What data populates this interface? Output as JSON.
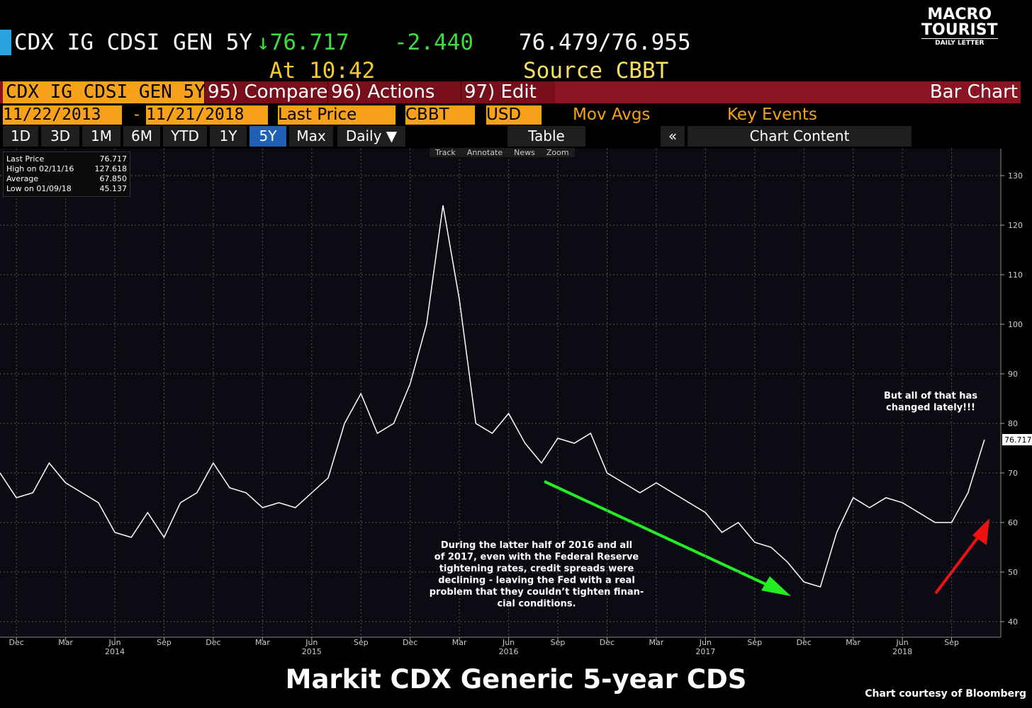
{
  "header": {
    "ticker": "CDX IG CDSI GEN 5Y",
    "last": "↓76.717",
    "change": "-2.440",
    "bid_ask": "76.479/76.955",
    "time": "At 10:42",
    "source": "Source CBBT",
    "logo_top": "MACRO",
    "logo_mid": "TOURIST",
    "logo_bottom": "DAILY LETTER"
  },
  "toolbar": {
    "security": "CDX IG CDSI GEN 5Y",
    "menu": [
      "95) Compare",
      "96) Actions",
      "97) Edit"
    ],
    "view": "Bar Chart",
    "start_date": "11/22/2013",
    "dash": "-",
    "end_date": "11/21/2018",
    "field": "Last Price",
    "source": "CBBT",
    "currency": "USD",
    "mov_avgs": "Mov Avgs",
    "key_events": "Key Events",
    "periods": [
      "1D",
      "3D",
      "1M",
      "6M",
      "YTD",
      "1Y",
      "5Y",
      "Max"
    ],
    "frequency": "Daily ▼",
    "table": "Table",
    "back": "«",
    "chart_content": "Chart Content",
    "tools": [
      "Track",
      "Annotate",
      "News",
      "Zoom"
    ]
  },
  "chart_data": {
    "type": "line",
    "color": "#ffffff",
    "legend_box": [
      {
        "name": "Last Price",
        "value": "76.717"
      },
      {
        "name": "High on 02/11/16",
        "value": "127.618"
      },
      {
        "name": "Average",
        "value": "67.850"
      },
      {
        "name": "Low on 01/09/18",
        "value": "45.137"
      }
    ],
    "x": [
      "2013-11",
      "2013-12",
      "2014-01",
      "2014-02",
      "2014-03",
      "2014-04",
      "2014-05",
      "2014-06",
      "2014-07",
      "2014-08",
      "2014-09",
      "2014-10",
      "2014-11",
      "2014-12",
      "2015-01",
      "2015-02",
      "2015-03",
      "2015-04",
      "2015-05",
      "2015-06",
      "2015-07",
      "2015-08",
      "2015-09",
      "2015-10",
      "2015-11",
      "2015-12",
      "2016-01",
      "2016-02",
      "2016-03",
      "2016-04",
      "2016-05",
      "2016-06",
      "2016-07",
      "2016-08",
      "2016-09",
      "2016-10",
      "2016-11",
      "2016-12",
      "2017-01",
      "2017-02",
      "2017-03",
      "2017-04",
      "2017-05",
      "2017-06",
      "2017-07",
      "2017-08",
      "2017-09",
      "2017-10",
      "2017-11",
      "2017-12",
      "2018-01",
      "2018-02",
      "2018-03",
      "2018-04",
      "2018-05",
      "2018-06",
      "2018-07",
      "2018-08",
      "2018-09",
      "2018-10",
      "2018-11"
    ],
    "values": [
      70,
      65,
      66,
      72,
      68,
      66,
      64,
      58,
      57,
      62,
      57,
      64,
      66,
      72,
      67,
      66,
      63,
      64,
      63,
      66,
      69,
      80,
      86,
      78,
      80,
      88,
      100,
      124,
      105,
      80,
      78,
      82,
      76,
      72,
      77,
      76,
      78,
      70,
      68,
      66,
      68,
      66,
      64,
      62,
      58,
      60,
      56,
      55,
      52,
      48,
      47,
      58,
      65,
      63,
      65,
      64,
      62,
      60,
      60,
      66,
      76.717
    ],
    "last_label": "76.717",
    "xlim": [
      "2013-11",
      "2018-12"
    ],
    "xticks": [
      {
        "value": "2013-12",
        "label": "Dec"
      },
      {
        "value": "2014-03",
        "label": "Mar"
      },
      {
        "value": "2014-06",
        "label": "Jun"
      },
      {
        "value": "2014-09",
        "label": "Sep"
      },
      {
        "value": "2014-12",
        "label": "Dec"
      },
      {
        "value": "2015-03",
        "label": "Mar"
      },
      {
        "value": "2015-06",
        "label": "Jun"
      },
      {
        "value": "2015-09",
        "label": "Sep"
      },
      {
        "value": "2015-12",
        "label": "Dec"
      },
      {
        "value": "2016-03",
        "label": "Mar"
      },
      {
        "value": "2016-06",
        "label": "Jun"
      },
      {
        "value": "2016-09",
        "label": "Sep"
      },
      {
        "value": "2016-12",
        "label": "Dec"
      },
      {
        "value": "2017-03",
        "label": "Mar"
      },
      {
        "value": "2017-06",
        "label": "Jun"
      },
      {
        "value": "2017-09",
        "label": "Sep"
      },
      {
        "value": "2017-12",
        "label": "Dec"
      },
      {
        "value": "2018-03",
        "label": "Mar"
      },
      {
        "value": "2018-06",
        "label": "Jun"
      },
      {
        "value": "2018-09",
        "label": "Sep"
      }
    ],
    "year_labels": [
      {
        "value": "2014-06",
        "label": "2014"
      },
      {
        "value": "2015-06",
        "label": "2015"
      },
      {
        "value": "2016-06",
        "label": "2016"
      },
      {
        "value": "2017-06",
        "label": "2017"
      },
      {
        "value": "2018-06",
        "label": "2018"
      }
    ],
    "ylim": [
      37,
      135
    ],
    "yticks": [
      40,
      50,
      60,
      70,
      80,
      90,
      100,
      110,
      120,
      130
    ],
    "grid": true,
    "annotations": [
      {
        "text": [
          "During the latter half of 2016 and all",
          "of 2017, even with the Federal Reserve",
          "tightening rates, credit spreads were",
          "declining - leaving the Fed with a real",
          "problem that they couldn’t tighten finan-",
          "cial conditions."
        ]
      },
      {
        "text": [
          "But all of that has",
          "changed lately!!!"
        ]
      }
    ]
  },
  "footer": {
    "title": "Markit CDX Generic 5-year CDS",
    "credit": "Chart courtesy of Bloomberg"
  }
}
